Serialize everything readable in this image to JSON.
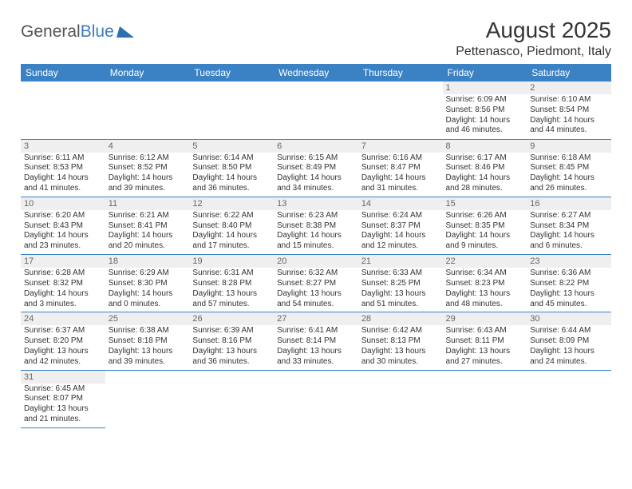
{
  "logo": {
    "text1": "General",
    "text2": "Blue",
    "shape_color": "#2e6fb3"
  },
  "header": {
    "title": "August 2025",
    "location": "Pettenasco, Piedmont, Italy"
  },
  "colors": {
    "header_bg": "#3b82c4",
    "header_text": "#ffffff",
    "row_divider": "#3b82c4",
    "daynum_bg": "#efefef",
    "daynum_text": "#666666",
    "body_text": "#333333"
  },
  "weekdays": [
    "Sunday",
    "Monday",
    "Tuesday",
    "Wednesday",
    "Thursday",
    "Friday",
    "Saturday"
  ],
  "grid": [
    [
      null,
      null,
      null,
      null,
      null,
      {
        "n": "1",
        "sr": "6:09 AM",
        "ss": "8:56 PM",
        "dl": "14 hours and 46 minutes."
      },
      {
        "n": "2",
        "sr": "6:10 AM",
        "ss": "8:54 PM",
        "dl": "14 hours and 44 minutes."
      }
    ],
    [
      {
        "n": "3",
        "sr": "6:11 AM",
        "ss": "8:53 PM",
        "dl": "14 hours and 41 minutes."
      },
      {
        "n": "4",
        "sr": "6:12 AM",
        "ss": "8:52 PM",
        "dl": "14 hours and 39 minutes."
      },
      {
        "n": "5",
        "sr": "6:14 AM",
        "ss": "8:50 PM",
        "dl": "14 hours and 36 minutes."
      },
      {
        "n": "6",
        "sr": "6:15 AM",
        "ss": "8:49 PM",
        "dl": "14 hours and 34 minutes."
      },
      {
        "n": "7",
        "sr": "6:16 AM",
        "ss": "8:47 PM",
        "dl": "14 hours and 31 minutes."
      },
      {
        "n": "8",
        "sr": "6:17 AM",
        "ss": "8:46 PM",
        "dl": "14 hours and 28 minutes."
      },
      {
        "n": "9",
        "sr": "6:18 AM",
        "ss": "8:45 PM",
        "dl": "14 hours and 26 minutes."
      }
    ],
    [
      {
        "n": "10",
        "sr": "6:20 AM",
        "ss": "8:43 PM",
        "dl": "14 hours and 23 minutes."
      },
      {
        "n": "11",
        "sr": "6:21 AM",
        "ss": "8:41 PM",
        "dl": "14 hours and 20 minutes."
      },
      {
        "n": "12",
        "sr": "6:22 AM",
        "ss": "8:40 PM",
        "dl": "14 hours and 17 minutes."
      },
      {
        "n": "13",
        "sr": "6:23 AM",
        "ss": "8:38 PM",
        "dl": "14 hours and 15 minutes."
      },
      {
        "n": "14",
        "sr": "6:24 AM",
        "ss": "8:37 PM",
        "dl": "14 hours and 12 minutes."
      },
      {
        "n": "15",
        "sr": "6:26 AM",
        "ss": "8:35 PM",
        "dl": "14 hours and 9 minutes."
      },
      {
        "n": "16",
        "sr": "6:27 AM",
        "ss": "8:34 PM",
        "dl": "14 hours and 6 minutes."
      }
    ],
    [
      {
        "n": "17",
        "sr": "6:28 AM",
        "ss": "8:32 PM",
        "dl": "14 hours and 3 minutes."
      },
      {
        "n": "18",
        "sr": "6:29 AM",
        "ss": "8:30 PM",
        "dl": "14 hours and 0 minutes."
      },
      {
        "n": "19",
        "sr": "6:31 AM",
        "ss": "8:28 PM",
        "dl": "13 hours and 57 minutes."
      },
      {
        "n": "20",
        "sr": "6:32 AM",
        "ss": "8:27 PM",
        "dl": "13 hours and 54 minutes."
      },
      {
        "n": "21",
        "sr": "6:33 AM",
        "ss": "8:25 PM",
        "dl": "13 hours and 51 minutes."
      },
      {
        "n": "22",
        "sr": "6:34 AM",
        "ss": "8:23 PM",
        "dl": "13 hours and 48 minutes."
      },
      {
        "n": "23",
        "sr": "6:36 AM",
        "ss": "8:22 PM",
        "dl": "13 hours and 45 minutes."
      }
    ],
    [
      {
        "n": "24",
        "sr": "6:37 AM",
        "ss": "8:20 PM",
        "dl": "13 hours and 42 minutes."
      },
      {
        "n": "25",
        "sr": "6:38 AM",
        "ss": "8:18 PM",
        "dl": "13 hours and 39 minutes."
      },
      {
        "n": "26",
        "sr": "6:39 AM",
        "ss": "8:16 PM",
        "dl": "13 hours and 36 minutes."
      },
      {
        "n": "27",
        "sr": "6:41 AM",
        "ss": "8:14 PM",
        "dl": "13 hours and 33 minutes."
      },
      {
        "n": "28",
        "sr": "6:42 AM",
        "ss": "8:13 PM",
        "dl": "13 hours and 30 minutes."
      },
      {
        "n": "29",
        "sr": "6:43 AM",
        "ss": "8:11 PM",
        "dl": "13 hours and 27 minutes."
      },
      {
        "n": "30",
        "sr": "6:44 AM",
        "ss": "8:09 PM",
        "dl": "13 hours and 24 minutes."
      }
    ],
    [
      {
        "n": "31",
        "sr": "6:45 AM",
        "ss": "8:07 PM",
        "dl": "13 hours and 21 minutes."
      },
      null,
      null,
      null,
      null,
      null,
      null
    ]
  ],
  "labels": {
    "sunrise": "Sunrise:",
    "sunset": "Sunset:",
    "daylight": "Daylight:"
  }
}
